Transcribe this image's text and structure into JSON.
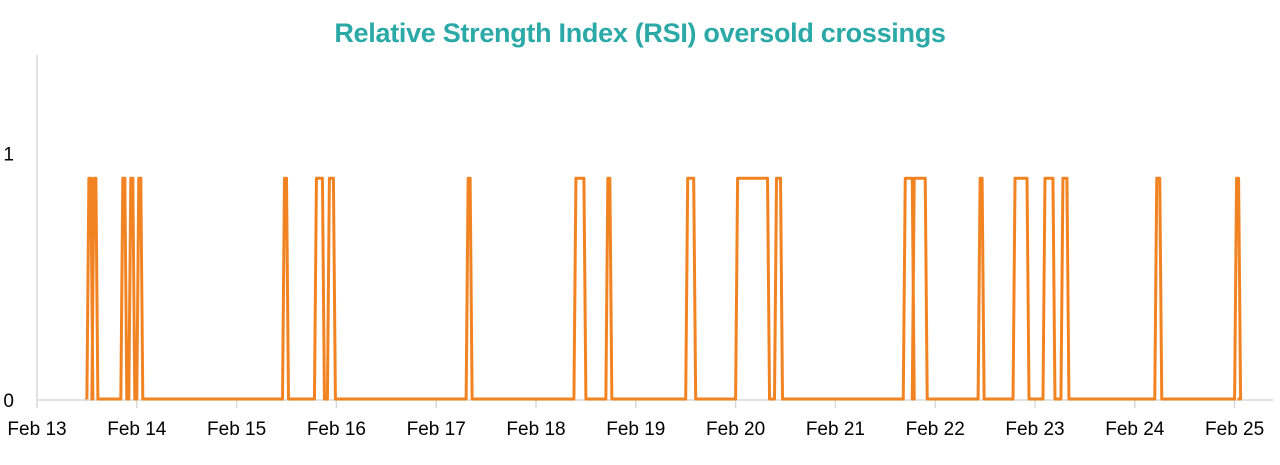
{
  "chart_data": {
    "type": "line",
    "title": "Relative Strength Index (RSI) oversold crossings",
    "xlabel": "",
    "ylabel": "",
    "x_ticks": [
      "Feb 13",
      "Feb 14",
      "Feb 15",
      "Feb 16",
      "Feb 17",
      "Feb 18",
      "Feb 19",
      "Feb 20",
      "Feb 21",
      "Feb 22",
      "Feb 23",
      "Feb 24",
      "Feb 25"
    ],
    "y_ticks": [
      "0",
      "1"
    ],
    "ylim": [
      0,
      1.4
    ],
    "grid": false,
    "line_color": "#f28322",
    "title_color": "#2aa9a7",
    "series": [
      {
        "pulse_value": 0.9,
        "active_intervals_days_since_feb13": [
          [
            0.52,
            0.54
          ],
          [
            0.57,
            0.59
          ],
          [
            0.86,
            0.88
          ],
          [
            0.94,
            0.96
          ],
          [
            1.02,
            1.04
          ],
          [
            2.48,
            2.5
          ],
          [
            2.8,
            2.86
          ],
          [
            2.93,
            2.97
          ],
          [
            4.32,
            4.34
          ],
          [
            5.4,
            5.48
          ],
          [
            5.72,
            5.74
          ],
          [
            6.52,
            6.58
          ],
          [
            7.02,
            7.32
          ],
          [
            7.41,
            7.45
          ],
          [
            8.7,
            8.77
          ],
          [
            8.79,
            8.9
          ],
          [
            9.45,
            9.47
          ],
          [
            9.8,
            9.92
          ],
          [
            10.1,
            10.18
          ],
          [
            10.28,
            10.32
          ],
          [
            11.22,
            11.25
          ],
          [
            12.02,
            12.04
          ]
        ]
      }
    ]
  }
}
